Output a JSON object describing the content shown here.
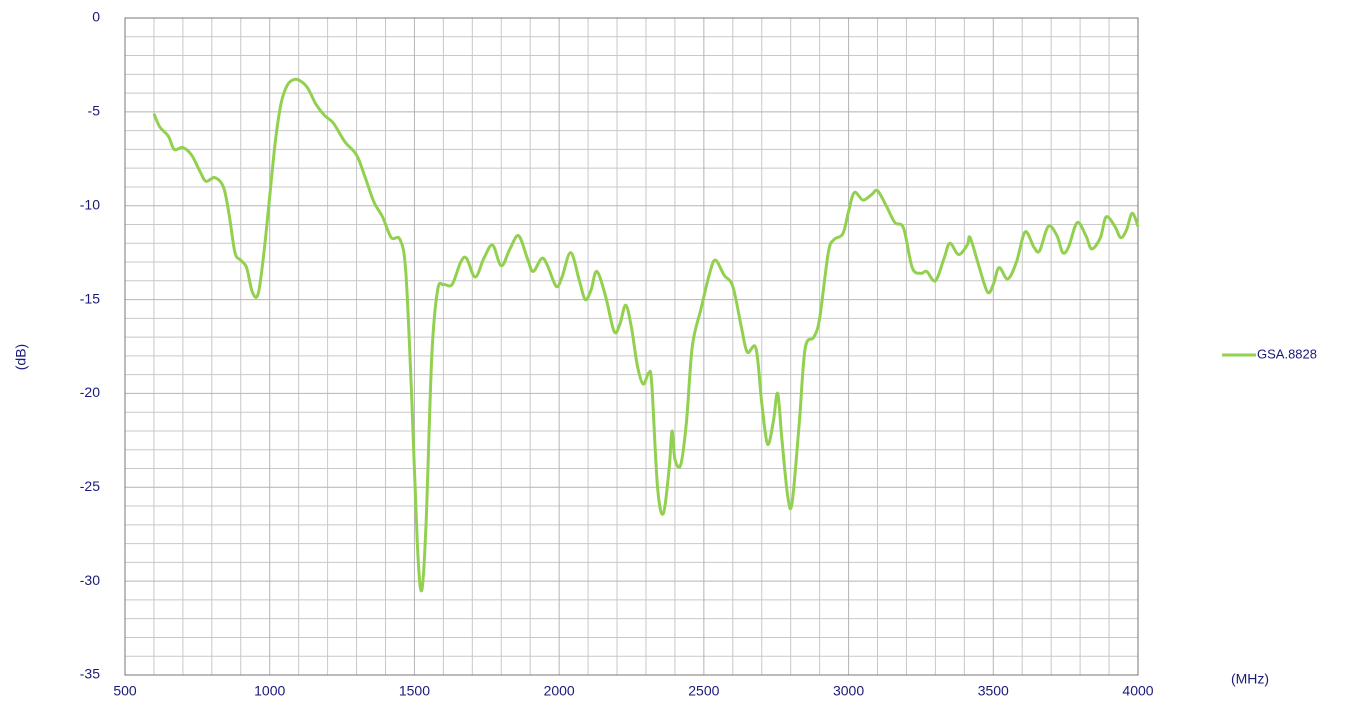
{
  "chart_data": {
    "type": "line",
    "x_label": "(MHz)",
    "y_label": "(dB)",
    "xlim": [
      500,
      4000
    ],
    "ylim": [
      -35,
      0
    ],
    "xticks": [
      500,
      1000,
      1500,
      2000,
      2500,
      3000,
      3500,
      4000
    ],
    "yticks": [
      0,
      -5,
      -10,
      -15,
      -20,
      -25,
      -30,
      -35
    ],
    "grid": true,
    "legend": "right",
    "x": [
      600,
      620,
      650,
      670,
      700,
      730,
      760,
      780,
      810,
      840,
      860,
      880,
      900,
      920,
      940,
      960,
      980,
      1000,
      1020,
      1040,
      1060,
      1080,
      1100,
      1130,
      1160,
      1190,
      1220,
      1260,
      1300,
      1330,
      1360,
      1390,
      1420,
      1450,
      1470,
      1490,
      1510,
      1525,
      1540,
      1560,
      1580,
      1600,
      1630,
      1660,
      1680,
      1710,
      1740,
      1770,
      1800,
      1830,
      1860,
      1890,
      1910,
      1940,
      1960,
      1990,
      2010,
      2040,
      2070,
      2090,
      2110,
      2130,
      2160,
      2190,
      2210,
      2230,
      2250,
      2270,
      2290,
      2310,
      2320,
      2340,
      2360,
      2380,
      2390,
      2400,
      2420,
      2440,
      2460,
      2490,
      2520,
      2540,
      2570,
      2600,
      2630,
      2650,
      2680,
      2700,
      2720,
      2740,
      2755,
      2770,
      2790,
      2805,
      2830,
      2850,
      2880,
      2900,
      2930,
      2950,
      2980,
      3000,
      3020,
      3050,
      3080,
      3100,
      3130,
      3160,
      3190,
      3220,
      3250,
      3270,
      3300,
      3330,
      3350,
      3380,
      3410,
      3420,
      3450,
      3480,
      3500,
      3520,
      3550,
      3580,
      3610,
      3640,
      3660,
      3690,
      3720,
      3740,
      3760,
      3790,
      3820,
      3840,
      3870,
      3890,
      3920,
      3940,
      3960,
      3980,
      4000
    ],
    "series": [
      {
        "name": "GSA.8828",
        "color": "#92d050",
        "values": [
          -5.1,
          -5.8,
          -6.3,
          -7.0,
          -6.9,
          -7.3,
          -8.2,
          -8.7,
          -8.5,
          -9.0,
          -10.5,
          -12.5,
          -12.9,
          -13.3,
          -14.6,
          -14.7,
          -12.5,
          -9.5,
          -6.5,
          -4.5,
          -3.6,
          -3.3,
          -3.3,
          -3.7,
          -4.6,
          -5.2,
          -5.6,
          -6.6,
          -7.3,
          -8.5,
          -9.8,
          -10.6,
          -11.7,
          -11.8,
          -13.5,
          -20,
          -28,
          -30.5,
          -27,
          -18,
          -14.5,
          -14.2,
          -14.2,
          -13,
          -12.8,
          -13.8,
          -12.8,
          -12.1,
          -13.2,
          -12.3,
          -11.6,
          -12.8,
          -13.5,
          -12.8,
          -13.2,
          -14.3,
          -13.8,
          -12.5,
          -14.0,
          -15.0,
          -14.5,
          -13.5,
          -14.8,
          -16.7,
          -16.3,
          -15.3,
          -16.5,
          -18.5,
          -19.5,
          -18.9,
          -19.5,
          -25,
          -26.4,
          -24,
          -22.0,
          -23.5,
          -23.8,
          -21.5,
          -17.5,
          -15.5,
          -13.6,
          -12.9,
          -13.7,
          -14.3,
          -16.5,
          -17.8,
          -17.6,
          -20.5,
          -22.7,
          -21.5,
          -20.0,
          -22.5,
          -25.5,
          -25.8,
          -21.5,
          -17.6,
          -17.0,
          -16.0,
          -12.5,
          -11.8,
          -11.5,
          -10.3,
          -9.3,
          -9.7,
          -9.4,
          -9.2,
          -10.0,
          -10.9,
          -11.2,
          -13.3,
          -13.6,
          -13.5,
          -14.0,
          -12.8,
          -12.0,
          -12.6,
          -12.1,
          -11.7,
          -13.2,
          -14.6,
          -14.2,
          -13.3,
          -13.9,
          -13.0,
          -11.4,
          -12.2,
          -12.4,
          -11.1,
          -11.6,
          -12.5,
          -12.2,
          -10.9,
          -11.6,
          -12.3,
          -11.7,
          -10.6,
          -11.1,
          -11.7,
          -11.3,
          -10.4,
          -11.1
        ]
      }
    ]
  }
}
